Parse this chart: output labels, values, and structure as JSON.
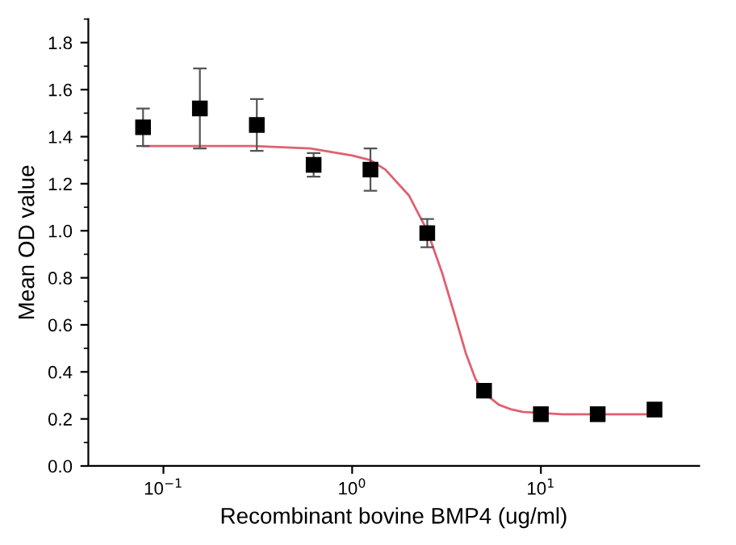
{
  "chart_data": {
    "type": "scatter",
    "xlabel": "Recombinant bovine BMP4 (ug/ml)",
    "ylabel": "Mean OD value",
    "log": "x",
    "xlim": [
      0.04,
      69
    ],
    "xticks": [
      {
        "value": 0.1,
        "label": "10$^{−1}$"
      },
      {
        "value": 1,
        "label": "10$^{0}$"
      },
      {
        "value": 10,
        "label": "10$^{1}$"
      }
    ],
    "ylim": [
      0,
      1.9
    ],
    "yticks": [
      {
        "value": 0,
        "label": "0.0"
      },
      {
        "value": 0.2,
        "label": "0.2"
      },
      {
        "value": 0.4,
        "label": "0.4"
      },
      {
        "value": 0.6,
        "label": "0.6"
      },
      {
        "value": 0.8,
        "label": "0.8"
      },
      {
        "value": 1.0,
        "label": "1.0"
      },
      {
        "value": 1.2,
        "label": "1.2"
      },
      {
        "value": 1.4,
        "label": "1.4"
      },
      {
        "value": 1.6,
        "label": "1.6"
      },
      {
        "value": 1.8,
        "label": "1.8"
      }
    ],
    "grid": false,
    "legend": false,
    "series": [
      {
        "color": "#000000",
        "marker": "square",
        "x": [
          0.078,
          0.156,
          0.3125,
          0.625,
          1.25,
          2.5,
          5,
          10,
          20,
          40
        ],
        "values": [
          1.44,
          1.52,
          1.45,
          1.28,
          1.26,
          0.99,
          0.32,
          0.22,
          0.22,
          0.24
        ],
        "errors": [
          0.08,
          0.17,
          0.11,
          0.05,
          0.09,
          0.06,
          null,
          null,
          null,
          null
        ]
      },
      {
        "type": "line",
        "color": "#e06070",
        "marker": "none",
        "line_style": "solid",
        "x": [
          0.078,
          0.3,
          0.6,
          1.0,
          1.25,
          1.5,
          2,
          2.5,
          3,
          3.5,
          4,
          4.5,
          5,
          6,
          7,
          8,
          13,
          40
        ],
        "values": [
          1.36,
          1.36,
          1.35,
          1.32,
          1.3,
          1.26,
          1.15,
          1.0,
          0.82,
          0.64,
          0.48,
          0.37,
          0.31,
          0.26,
          0.24,
          0.23,
          0.22,
          0.22
        ]
      }
    ]
  }
}
